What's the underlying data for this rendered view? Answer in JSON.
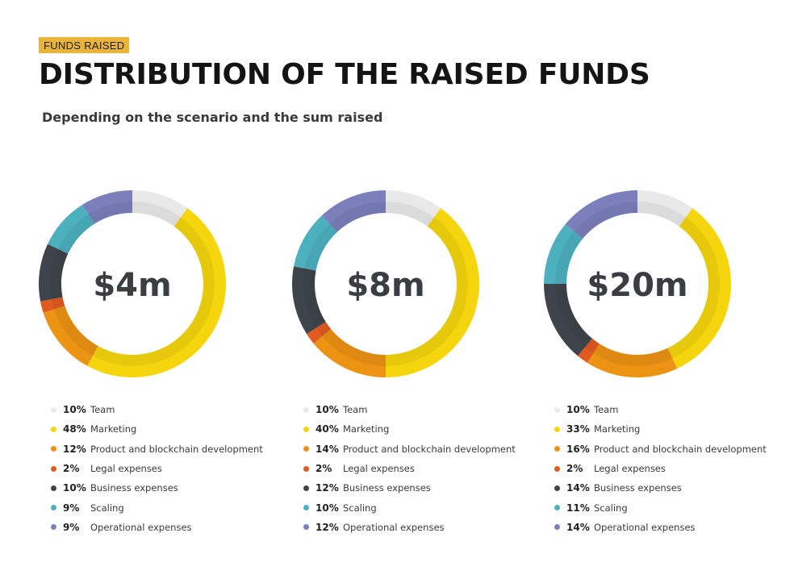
{
  "header": {
    "badge": "FUNDS RAISED",
    "title": "DISTRIBUTION OF THE RAISED FUNDS",
    "subtitle": "Depending on the scenario and the sum raised"
  },
  "categories": [
    "Team",
    "Marketing",
    "Product and blockchain development",
    "Legal expenses",
    "Business expenses",
    "Scaling",
    "Operational expenses"
  ],
  "colors": [
    "#e9e9ea",
    "#f5d50e",
    "#ec9314",
    "#e15a1f",
    "#3f444c",
    "#4db0bf",
    "#7b80bd"
  ],
  "chart_data": [
    {
      "type": "pie",
      "center_label": "$4m",
      "categories": [
        "Team",
        "Marketing",
        "Product and blockchain development",
        "Legal expenses",
        "Business expenses",
        "Scaling",
        "Operational expenses"
      ],
      "values": [
        10,
        48,
        12,
        2,
        10,
        9,
        9
      ],
      "labels": [
        "10%",
        "48%",
        "12%",
        "2%",
        "10%",
        "9%",
        "9%"
      ]
    },
    {
      "type": "pie",
      "center_label": "$8m",
      "categories": [
        "Team",
        "Marketing",
        "Product and blockchain development",
        "Legal expenses",
        "Business expenses",
        "Scaling",
        "Operational expenses"
      ],
      "values": [
        10,
        40,
        14,
        2,
        12,
        10,
        12
      ],
      "labels": [
        "10%",
        "40%",
        "14%",
        "2%",
        "12%",
        "10%",
        "12%"
      ]
    },
    {
      "type": "pie",
      "center_label": "$20m",
      "categories": [
        "Team",
        "Marketing",
        "Product and blockchain development",
        "Legal expenses",
        "Business expenses",
        "Scaling",
        "Operational expenses"
      ],
      "values": [
        10,
        33,
        16,
        2,
        14,
        11,
        14
      ],
      "labels": [
        "10%",
        "33%",
        "16%",
        "2%",
        "14%",
        "11%",
        "14%"
      ]
    }
  ]
}
